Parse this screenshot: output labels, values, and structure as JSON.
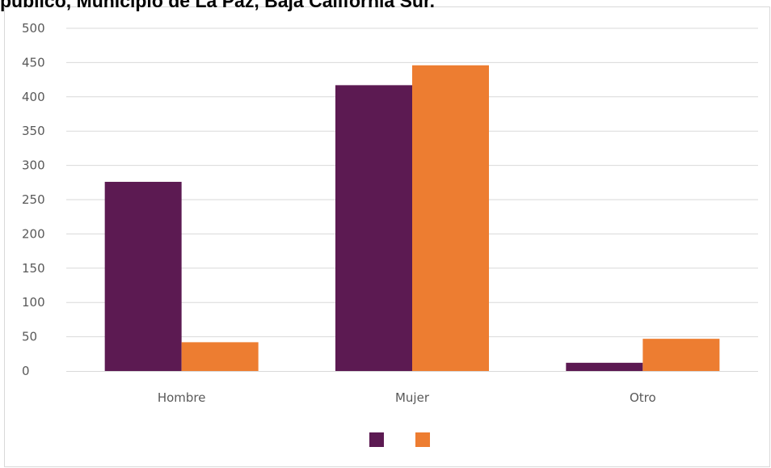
{
  "title": "público, Municipio de La Paz, Baja California Sur.",
  "chart_data": {
    "type": "bar",
    "title": "público, Municipio de La Paz, Baja California Sur.",
    "categories": [
      "Hombre",
      "Mujer",
      "Otro"
    ],
    "series": [
      {
        "values": [
          276,
          417,
          12
        ],
        "color": "#5c1a52"
      },
      {
        "values": [
          42,
          446,
          47
        ],
        "color": "#ed7d31"
      }
    ],
    "y_ticks": [
      "0",
      "50",
      "100",
      "150",
      "200",
      "250",
      "300",
      "350",
      "400",
      "450",
      "500"
    ],
    "ylim": [
      0,
      500
    ],
    "grid": true,
    "legend_position": "bottom",
    "xlabel": "",
    "ylabel": ""
  }
}
